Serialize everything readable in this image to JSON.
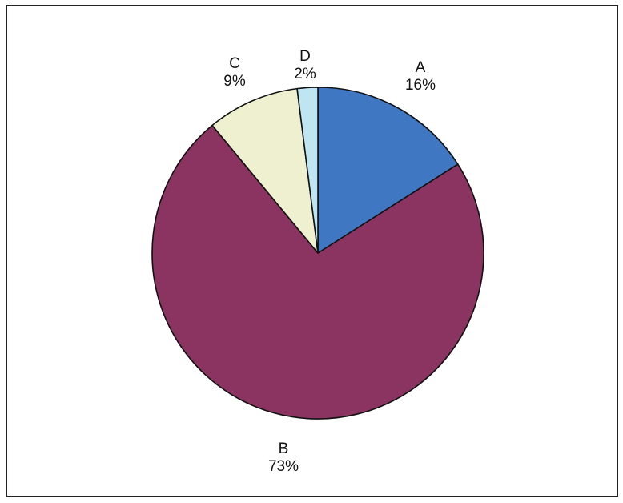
{
  "chart_data": {
    "type": "pie",
    "title": "",
    "start_angle_deg": 0,
    "direction": "clockwise",
    "slices": [
      {
        "label": "A",
        "value": 16,
        "percent_label": "16%",
        "color": "#3f77c2"
      },
      {
        "label": "B",
        "value": 73,
        "percent_label": "73%",
        "color": "#8c3461"
      },
      {
        "label": "C",
        "value": 9,
        "percent_label": "9%",
        "color": "#eef0cf"
      },
      {
        "label": "D",
        "value": 2,
        "percent_label": "2%",
        "color": "#bfe4f2"
      }
    ],
    "legend": "none"
  }
}
